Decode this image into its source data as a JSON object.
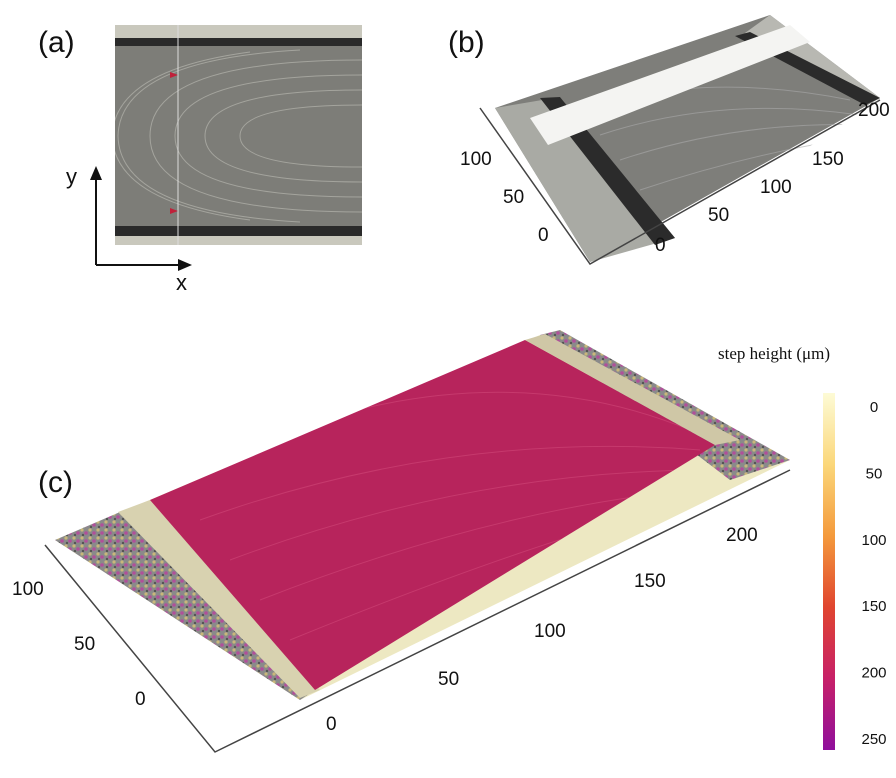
{
  "panels": {
    "a": {
      "label": "(a)",
      "x_axis": "x",
      "y_axis": "y"
    },
    "b": {
      "label": "(b)",
      "depth_ticks": [
        100,
        50,
        0
      ],
      "length_ticks": [
        0,
        50,
        100,
        150,
        200
      ]
    },
    "c": {
      "label": "(c)",
      "depth_ticks": [
        100,
        50,
        0
      ],
      "length_ticks": [
        0,
        50,
        100,
        150,
        200
      ]
    }
  },
  "colorbar": {
    "title": "step height (μm)",
    "ticks": [
      0,
      50,
      100,
      150,
      200,
      250
    ]
  }
}
